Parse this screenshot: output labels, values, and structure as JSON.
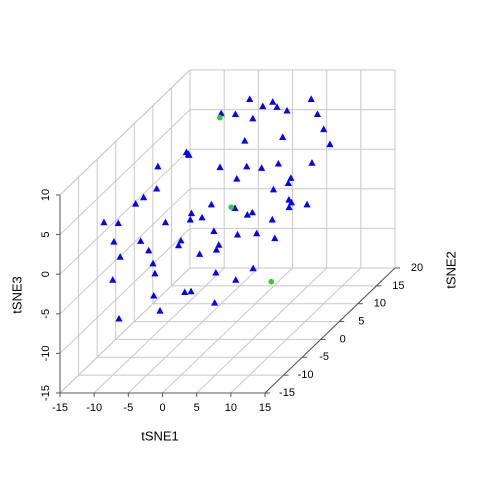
{
  "chart_data": {
    "type": "scatter3d",
    "x_label": "tSNE1",
    "y_label": "tSNE2",
    "z_label": "tSNE3",
    "xlim": [
      -15,
      15
    ],
    "ylim": [
      -15,
      20
    ],
    "zlim": [
      -15,
      10
    ],
    "xticks": [
      -15,
      -10,
      -5,
      0,
      5,
      10,
      15
    ],
    "yticks": [
      -15,
      -10,
      -5,
      0,
      5,
      10,
      15,
      20
    ],
    "zticks": [
      -15,
      -10,
      -5,
      0,
      5,
      10
    ],
    "grid": true,
    "series": [
      {
        "color": "#0000ff",
        "marker": "triangle",
        "x": [
          -14,
          -13,
          -12,
          -11,
          -10,
          -9,
          -12,
          -8,
          -7,
          -6,
          -9,
          -5,
          -4,
          -3,
          -2,
          0,
          1,
          2,
          3,
          4,
          -1,
          -3,
          0,
          2,
          -5,
          -6,
          -4,
          -2,
          0,
          2,
          4,
          6,
          8,
          10,
          -8,
          -10,
          -3,
          -1,
          1,
          3,
          5,
          7,
          9,
          11,
          12,
          10,
          8,
          6,
          5,
          7,
          9,
          11,
          12,
          13,
          -7,
          -5,
          -2,
          0,
          3,
          5,
          -11,
          -9,
          -6,
          -4,
          -1,
          1,
          4,
          6,
          8,
          2
        ],
        "y": [
          -5,
          -3,
          -6,
          -2,
          -8,
          0,
          2,
          -4,
          5,
          3,
          8,
          10,
          12,
          14,
          13,
          12,
          14,
          11,
          13,
          10,
          9,
          6,
          5,
          4,
          2,
          -6,
          -10,
          -12,
          -9,
          -11,
          -8,
          -12,
          -10,
          -9,
          -12,
          -10,
          -2,
          0,
          -3,
          -1,
          0,
          2,
          3,
          5,
          8,
          10,
          12,
          14,
          7,
          6,
          -2,
          -5,
          -3,
          0,
          -8,
          -5,
          -7,
          -5,
          -6,
          -4,
          4,
          -1,
          1,
          3,
          2,
          6,
          3,
          8,
          5,
          8
        ],
        "z": [
          2,
          1,
          0,
          3,
          -1,
          4,
          2,
          -2,
          6,
          7,
          5,
          9,
          8,
          9,
          7,
          9,
          8,
          10,
          8,
          6,
          6,
          4,
          3,
          5,
          0,
          -4,
          -5,
          -6,
          -5,
          -4,
          -3,
          -5,
          -3,
          -2,
          -7,
          -3,
          1,
          2,
          0,
          2,
          1,
          3,
          4,
          5,
          6,
          7,
          8,
          9,
          4,
          2,
          1,
          0,
          3,
          2,
          1,
          2,
          0,
          -2,
          -1,
          0,
          5,
          -5,
          -3,
          -1,
          -4,
          -2,
          -3,
          -1,
          0,
          3
        ]
      },
      {
        "color": "#33cc33",
        "marker": "circle",
        "x": [
          -5.2,
          1.9,
          13.2
        ],
        "y": [
          10,
          0,
          -10
        ],
        "z": [
          8.5,
          1.7,
          -3.2
        ]
      }
    ]
  }
}
